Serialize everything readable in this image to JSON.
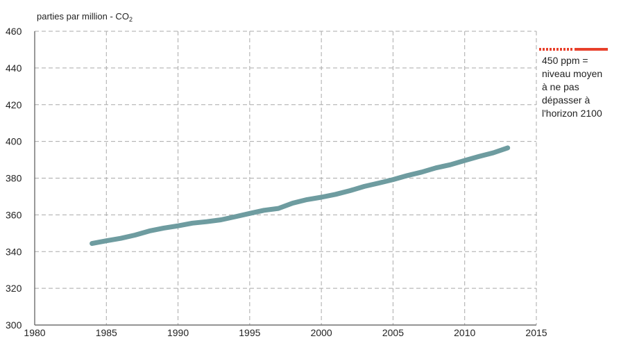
{
  "chart_data": {
    "type": "line",
    "title": "",
    "xlabel": "",
    "ylabel": "parties par million - CO",
    "ylabel_subscript": "2",
    "xlim": [
      1980,
      2015
    ],
    "ylim": [
      300,
      460
    ],
    "x_ticks": [
      "1980",
      "1985",
      "1990",
      "1995",
      "2000",
      "2005",
      "2010",
      "2015"
    ],
    "y_ticks": [
      "300",
      "320",
      "340",
      "360",
      "380",
      "400",
      "420",
      "440",
      "460"
    ],
    "grid": "dashed",
    "series": [
      {
        "x": [
          1984,
          1985,
          1986,
          1987,
          1988,
          1989,
          1990,
          1991,
          1992,
          1993,
          1994,
          1995,
          1996,
          1997,
          1998,
          1999,
          2000,
          2001,
          2002,
          2003,
          2004,
          2005,
          2006,
          2007,
          2008,
          2009,
          2010,
          2011,
          2012,
          2013
        ],
        "values": [
          344.4,
          345.9,
          347.2,
          349.0,
          351.2,
          352.8,
          354.0,
          355.5,
          356.3,
          357.3,
          359.0,
          360.8,
          362.5,
          363.5,
          366.4,
          368.3,
          369.6,
          371.2,
          373.2,
          375.5,
          377.3,
          379.2,
          381.4,
          383.3,
          385.6,
          387.3,
          389.6,
          391.8,
          393.8,
          396.5
        ],
        "color": "#6e9ca0"
      }
    ],
    "reference_line": {
      "value": 450,
      "color": "#e8412c",
      "label_lines": [
        "450 ppm =",
        "niveau moyen",
        "à ne pas",
        "dépasser à",
        "l'horizon 2100"
      ]
    }
  }
}
